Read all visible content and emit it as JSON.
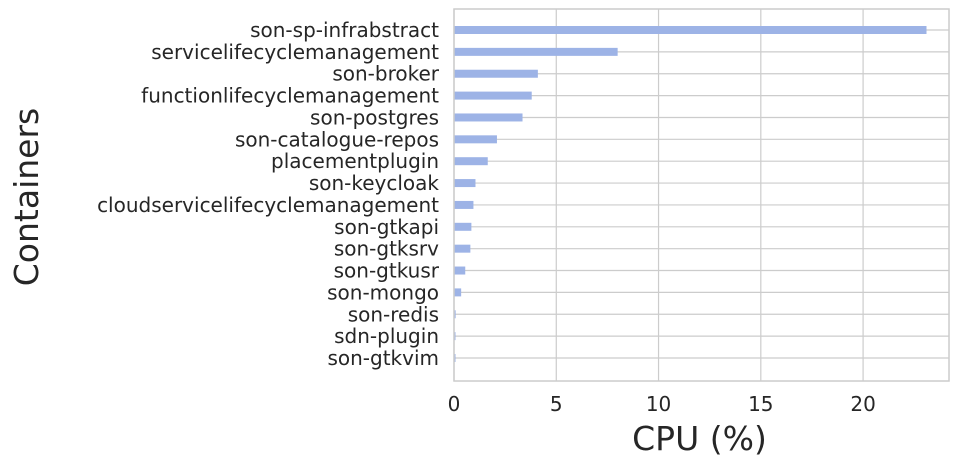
{
  "chart_data": {
    "type": "bar",
    "orientation": "horizontal",
    "xlabel": "CPU (%)",
    "ylabel": "Containers",
    "xlim": [
      0,
      24.2
    ],
    "xticks": [
      0,
      5,
      10,
      15,
      20
    ],
    "grid": true,
    "bar_color": "#9db3e6",
    "grid_color": "#cccccc",
    "categories": [
      "son-sp-infrabstract",
      "servicelifecyclemanagement",
      "son-broker",
      "functionlifecyclemanagement",
      "son-postgres",
      "son-catalogue-repos",
      "placementplugin",
      "son-keycloak",
      "cloudservicelifecyclemanagement",
      "son-gtkapi",
      "son-gtksrv",
      "son-gtkusr",
      "son-mongo",
      "son-redis",
      "sdn-plugin",
      "son-gtkvim"
    ],
    "values": [
      23.1,
      8.0,
      4.1,
      3.8,
      3.35,
      2.1,
      1.65,
      1.05,
      0.95,
      0.85,
      0.8,
      0.55,
      0.35,
      0.08,
      0.06,
      0.05
    ]
  }
}
